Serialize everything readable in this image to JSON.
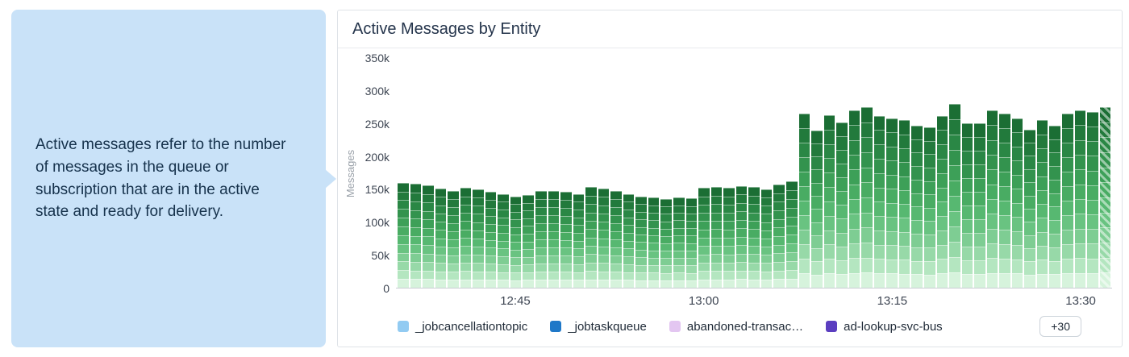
{
  "callout": {
    "text": "Active messages refer to the number of messages in the queue or subscription that are in the active state and ready for delivery."
  },
  "card": {
    "title": "Active Messages by Entity"
  },
  "chart_data": {
    "type": "bar",
    "stacked": true,
    "title": "Active Messages by Entity",
    "ylabel": "Messages",
    "ylim": [
      0,
      350000
    ],
    "y_tick_labels_top_to_bottom": [
      "350k",
      "300k",
      "250k",
      "200k",
      "150k",
      "100k",
      "50k",
      "0"
    ],
    "x_ticks": [
      {
        "label": "12:45",
        "index": 9
      },
      {
        "label": "13:00",
        "index": 24
      },
      {
        "label": "13:15",
        "index": 39
      },
      {
        "label": "13:30",
        "index": 54
      }
    ],
    "values_unit": "thousands of messages",
    "values_k": [
      160,
      158,
      156,
      151,
      148,
      152,
      150,
      146,
      143,
      139,
      141,
      147,
      148,
      146,
      143,
      153,
      151,
      148,
      143,
      139,
      137,
      135,
      137,
      136,
      152,
      153,
      152,
      155,
      153,
      150,
      157,
      162,
      265,
      240,
      263,
      252,
      270,
      275,
      262,
      258,
      255,
      247,
      244,
      262,
      280,
      251,
      250,
      270,
      265,
      258,
      241,
      255,
      247,
      265,
      270,
      268,
      275
    ],
    "segments_per_bar": 12,
    "bar_palette_top_to_bottom": [
      "#1b6e34",
      "#227a3c",
      "#2a8745",
      "#33934e",
      "#3da058",
      "#49ac63",
      "#57b871",
      "#69c381",
      "#7ecd93",
      "#97d9a8",
      "#b4e6c0",
      "#d6f3dc"
    ],
    "last_bar_hatched": true,
    "grid": false,
    "legend": {
      "position": "bottom",
      "items": [
        {
          "label": "_jobcancellationtopic",
          "color": "#92cbf2"
        },
        {
          "label": "_jobtaskqueue",
          "color": "#1f78c8"
        },
        {
          "label": "abandoned-transac…",
          "color": "#e3c6f1"
        },
        {
          "label": "ad-lookup-svc-bus",
          "color": "#5b3ec0"
        }
      ],
      "more_label": "+30"
    }
  }
}
